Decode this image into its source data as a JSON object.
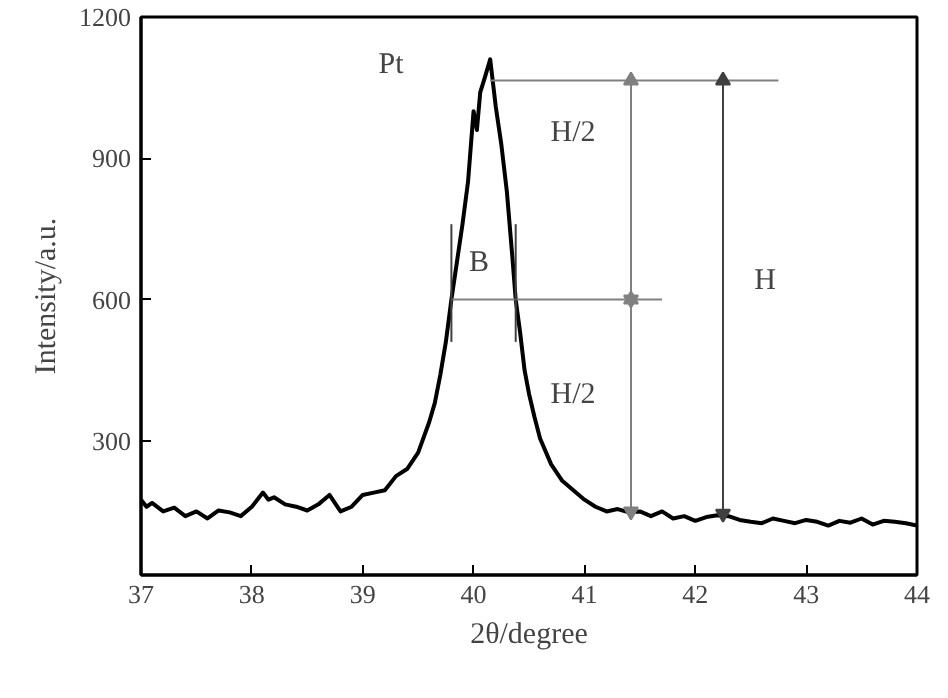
{
  "chart_data": {
    "type": "line",
    "xlabel": "2θ/degree",
    "ylabel": "Intensity/a.u.",
    "xlim": [
      37,
      44
    ],
    "ylim": [
      15,
      1200
    ],
    "xticks": [
      37,
      38,
      39,
      40,
      41,
      42,
      43,
      44
    ],
    "yticks": [
      300,
      600,
      900,
      1200
    ],
    "grid": false,
    "marker": "none",
    "line_style": "solid",
    "series": [
      {
        "color": "#000000",
        "x": [
          37.0,
          37.05,
          37.1,
          37.2,
          37.3,
          37.4,
          37.5,
          37.6,
          37.7,
          37.8,
          37.9,
          38.0,
          38.1,
          38.15,
          38.2,
          38.3,
          38.4,
          38.5,
          38.6,
          38.7,
          38.8,
          38.9,
          39.0,
          39.1,
          39.2,
          39.3,
          39.4,
          39.5,
          39.6,
          39.65,
          39.7,
          39.75,
          39.8,
          39.85,
          39.9,
          39.95,
          40.0,
          40.03,
          40.06,
          40.1,
          40.15,
          40.18,
          40.2,
          40.25,
          40.3,
          40.35,
          40.38,
          40.42,
          40.46,
          40.5,
          40.55,
          40.6,
          40.7,
          40.8,
          40.9,
          41.0,
          41.1,
          41.2,
          41.3,
          41.4,
          41.5,
          41.6,
          41.7,
          41.8,
          41.9,
          42.0,
          42.1,
          42.2,
          42.3,
          42.4,
          42.5,
          42.6,
          42.7,
          42.8,
          42.9,
          43.0,
          43.1,
          43.2,
          43.3,
          43.4,
          43.5,
          43.6,
          43.7,
          43.8,
          43.9,
          44.0
        ],
        "values": [
          175,
          160,
          168,
          150,
          158,
          140,
          150,
          135,
          152,
          148,
          140,
          160,
          190,
          175,
          180,
          165,
          160,
          152,
          165,
          185,
          150,
          160,
          185,
          190,
          195,
          225,
          240,
          275,
          340,
          380,
          440,
          510,
          600,
          680,
          760,
          850,
          1000,
          960,
          1040,
          1070,
          1110,
          1050,
          1010,
          930,
          830,
          690,
          600,
          530,
          450,
          400,
          350,
          305,
          250,
          215,
          195,
          175,
          160,
          150,
          155,
          148,
          150,
          140,
          150,
          135,
          140,
          130,
          138,
          142,
          140,
          132,
          128,
          125,
          135,
          130,
          125,
          132,
          128,
          120,
          130,
          126,
          135,
          122,
          130,
          128,
          125,
          120
        ]
      },
      {
        "color": "#808080",
        "x": [
          40.15,
          42.75
        ],
        "values": [
          1065,
          1065
        ]
      },
      {
        "color": "#808080",
        "x": [
          39.8,
          41.7
        ],
        "values": [
          600,
          600
        ]
      },
      {
        "color": "#808080",
        "x": [
          41.42,
          41.42
        ],
        "values": [
          1065,
          600
        ],
        "marker": "triangle"
      },
      {
        "color": "#808080",
        "x": [
          41.42,
          41.42
        ],
        "values": [
          600,
          150
        ],
        "marker": "triangle"
      },
      {
        "color": "#404040",
        "x": [
          42.25,
          42.25
        ],
        "values": [
          1065,
          145
        ],
        "marker": "triangle"
      },
      {
        "color": "#404040",
        "x": [
          39.8,
          39.8
        ],
        "values": [
          510,
          760
        ]
      },
      {
        "color": "#404040",
        "x": [
          40.38,
          40.38
        ],
        "values": [
          510,
          760
        ]
      }
    ],
    "annotations": [
      "Pt",
      "B",
      "H/2",
      "H/2",
      "H"
    ]
  }
}
